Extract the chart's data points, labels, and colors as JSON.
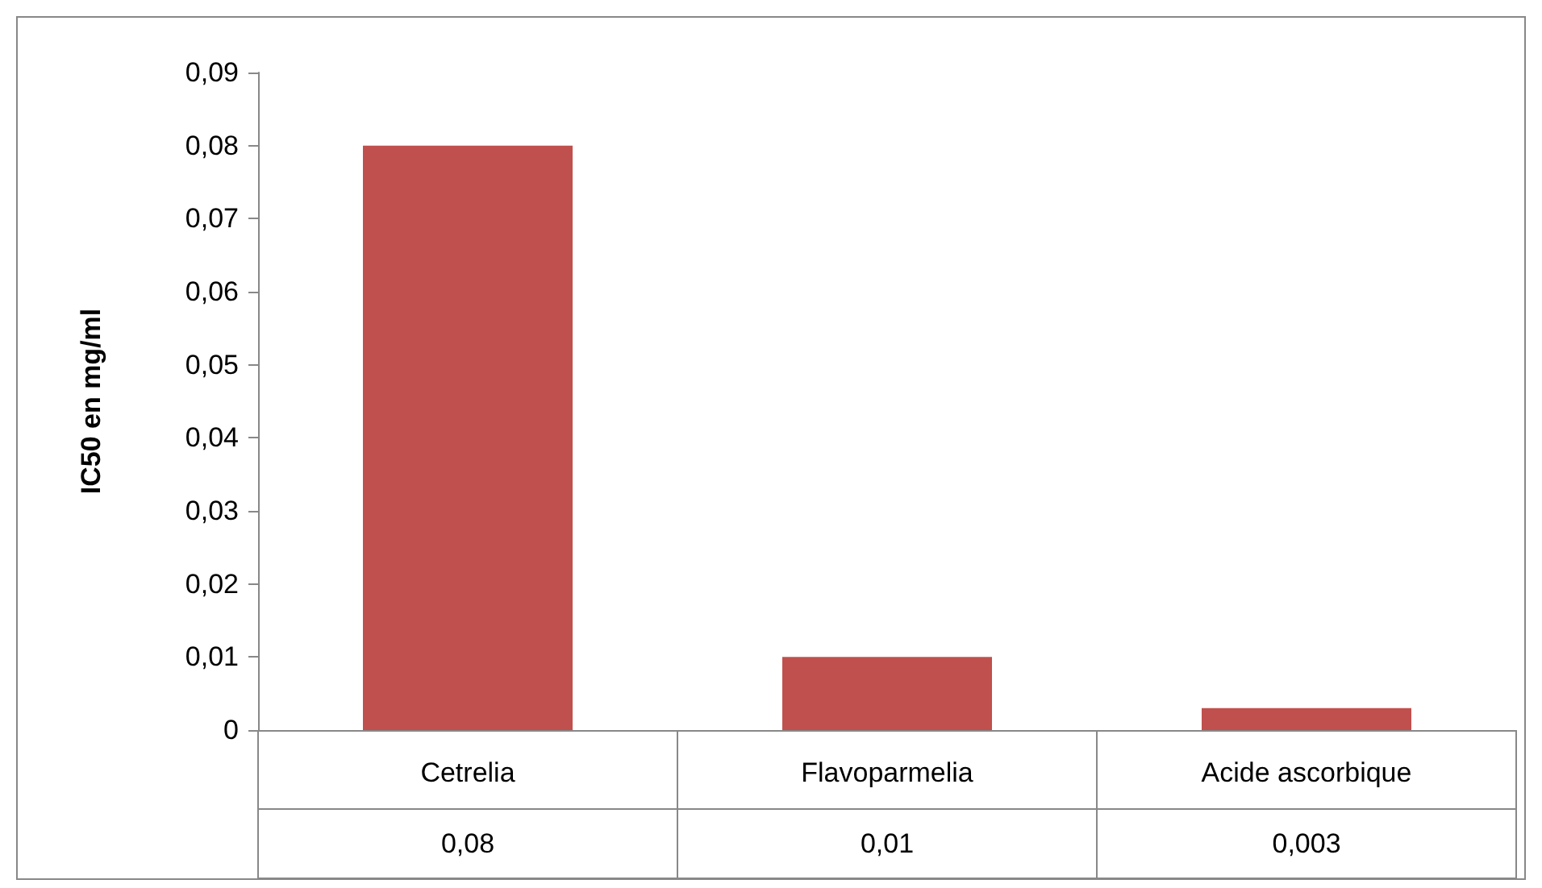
{
  "chart_data": {
    "type": "bar",
    "ylabel": "IC50 en mg/ml",
    "categories": [
      "Cetrelia",
      "Flavoparmelia",
      "Acide ascorbique"
    ],
    "values": [
      0.08,
      0.01,
      0.003
    ],
    "color": "#c0504d",
    "ylim": [
      0,
      0.09
    ],
    "yticks": [
      {
        "value": 0,
        "label": "0"
      },
      {
        "value": 0.01,
        "label": "0,01"
      },
      {
        "value": 0.02,
        "label": "0,02"
      },
      {
        "value": 0.03,
        "label": "0,03"
      },
      {
        "value": 0.04,
        "label": "0,04"
      },
      {
        "value": 0.05,
        "label": "0,05"
      },
      {
        "value": 0.06,
        "label": "0,06"
      },
      {
        "value": 0.07,
        "label": "0,07"
      },
      {
        "value": 0.08,
        "label": "0,08"
      },
      {
        "value": 0.09,
        "label": "0,09"
      }
    ],
    "grid": false,
    "value_labels": [
      "0,08",
      "0,01",
      "0,003"
    ]
  }
}
